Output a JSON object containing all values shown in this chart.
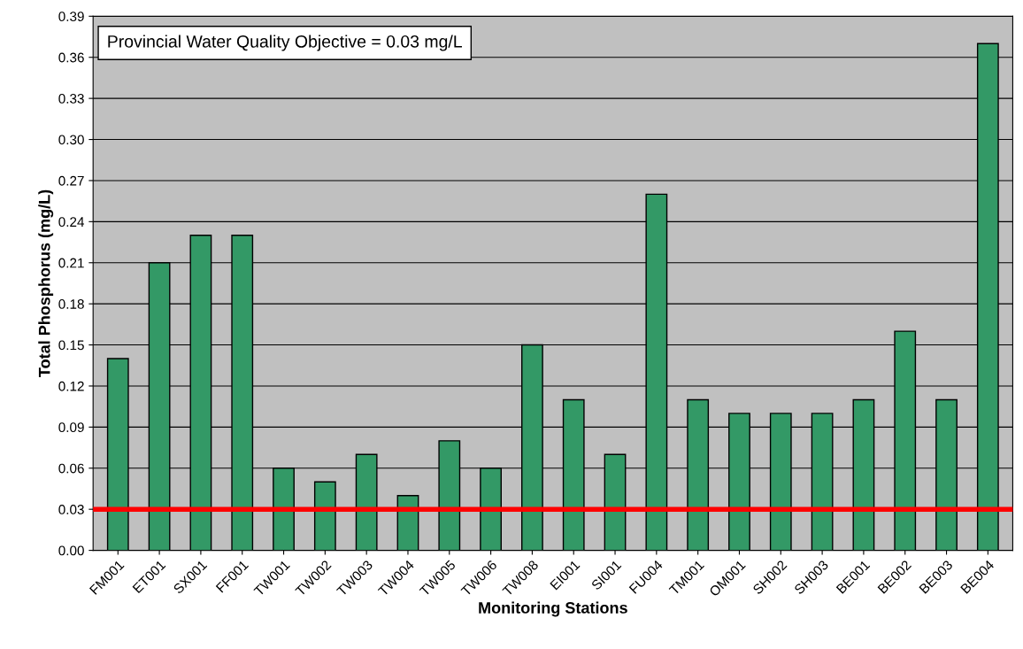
{
  "chart_data": {
    "type": "bar",
    "xlabel": "Monitoring Stations",
    "ylabel": "Total Phosphorus (mg/L)",
    "categories": [
      "FM001",
      "ET001",
      "SX001",
      "FF001",
      "TW001",
      "TW002",
      "TW003",
      "TW004",
      "TW005",
      "TW006",
      "TW008",
      "EI001",
      "SI001",
      "FU004",
      "TM001",
      "OM001",
      "SH002",
      "SH003",
      "BE001",
      "BE002",
      "BE003",
      "BE004"
    ],
    "values": [
      0.14,
      0.21,
      0.23,
      0.23,
      0.06,
      0.05,
      0.07,
      0.04,
      0.08,
      0.06,
      0.15,
      0.11,
      0.07,
      0.26,
      0.11,
      0.1,
      0.1,
      0.1,
      0.11,
      0.16,
      0.11,
      0.37
    ],
    "color": "#339966",
    "ylim": [
      0,
      0.39
    ],
    "yticks": [
      {
        "value": 0,
        "label": "0.00"
      },
      {
        "value": 0.03,
        "label": "0.03"
      },
      {
        "value": 0.06,
        "label": "0.06"
      },
      {
        "value": 0.09,
        "label": "0.09"
      },
      {
        "value": 0.12,
        "label": "0.12"
      },
      {
        "value": 0.15,
        "label": "0.15"
      },
      {
        "value": 0.18,
        "label": "0.18"
      },
      {
        "value": 0.21,
        "label": "0.21"
      },
      {
        "value": 0.24,
        "label": "0.24"
      },
      {
        "value": 0.27,
        "label": "0.27"
      },
      {
        "value": 0.3,
        "label": "0.30"
      },
      {
        "value": 0.33,
        "label": "0.33"
      },
      {
        "value": 0.36,
        "label": "0.36"
      },
      {
        "value": 0.39,
        "label": "0.39"
      }
    ],
    "grid": "y",
    "ref_lines": [
      {
        "axis": "y",
        "value": 0.03,
        "color": "#ff0000"
      }
    ],
    "annotations": [
      "Provincial Water Quality Objective = 0.03 mg/L"
    ]
  }
}
